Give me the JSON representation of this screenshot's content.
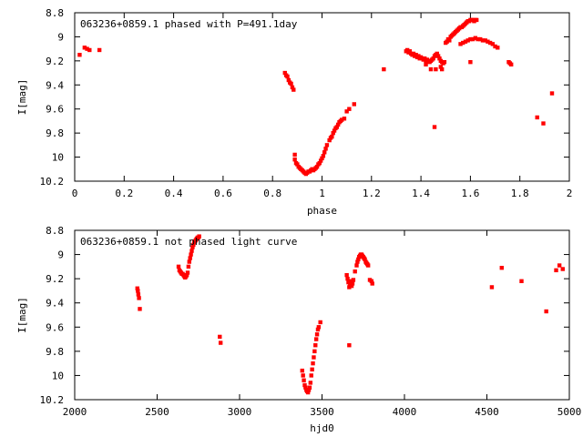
{
  "chart_data": [
    {
      "type": "scatter",
      "title": "063236+0859.1 phased with P=491.1day",
      "xlabel": "phase",
      "ylabel": "I[mag]",
      "xlim": [
        0,
        2
      ],
      "ylim": [
        10.2,
        8.8
      ],
      "y_inverted": true,
      "grid": false,
      "marker_color": "#ff0000",
      "x_ticks": [
        0,
        0.2,
        0.4,
        0.6,
        0.8,
        1,
        1.2,
        1.4,
        1.6,
        1.8,
        2
      ],
      "x_tick_labels": [
        "0",
        "0.2",
        "0.4",
        "0.6",
        "0.8",
        "1",
        "1.2",
        "1.4",
        "1.6",
        "1.8",
        "2"
      ],
      "y_ticks": [
        8.8,
        9,
        9.2,
        9.4,
        9.6,
        9.8,
        10,
        10.2
      ],
      "y_tick_labels": [
        "8.8",
        "9",
        "9.2",
        "9.4",
        "9.6",
        "9.8",
        "10",
        "10.2"
      ],
      "series": [
        {
          "x": [
            0.02,
            0.04,
            0.05,
            0.06,
            0.1,
            0.85,
            0.855,
            0.86,
            0.865,
            0.87,
            0.875,
            0.88,
            0.885,
            0.89,
            0.89,
            0.895,
            0.9,
            0.905,
            0.91,
            0.915,
            0.92,
            0.925,
            0.93,
            0.935,
            0.94,
            0.945,
            0.95,
            0.955,
            0.96,
            0.965,
            0.97,
            0.975,
            0.98,
            0.985,
            0.99,
            0.995,
            1.0,
            1.005,
            1.01,
            1.015,
            1.02,
            1.03,
            1.035,
            1.04,
            1.045,
            1.05,
            1.055,
            1.06,
            1.065,
            1.07,
            1.075,
            1.08,
            1.09,
            1.1,
            1.11,
            1.13,
            1.25,
            1.34,
            1.345,
            1.35,
            1.355,
            1.36,
            1.365,
            1.37,
            1.375,
            1.38,
            1.385,
            1.39,
            1.395,
            1.4,
            1.405,
            1.41,
            1.415,
            1.42,
            1.425,
            1.43,
            1.435,
            1.44,
            1.445,
            1.45,
            1.455,
            1.46,
            1.465,
            1.47,
            1.475,
            1.48,
            1.485,
            1.49,
            1.495,
            1.5,
            1.505,
            1.51,
            1.515,
            1.52,
            1.525,
            1.53,
            1.535,
            1.54,
            1.545,
            1.55,
            1.555,
            1.56,
            1.565,
            1.57,
            1.575,
            1.58,
            1.585,
            1.59,
            1.595,
            1.6,
            1.605,
            1.61,
            1.615,
            1.62,
            1.625,
            1.56,
            1.57,
            1.58,
            1.59,
            1.6,
            1.61,
            1.62,
            1.63,
            1.64,
            1.65,
            1.66,
            1.67,
            1.68,
            1.69,
            1.7,
            1.71,
            1.6,
            1.42,
            1.44,
            1.46,
            1.48,
            1.455,
            1.485,
            1.755,
            1.76,
            1.765,
            1.87,
            1.895,
            1.93
          ],
          "y": [
            9.15,
            9.09,
            9.1,
            9.11,
            9.11,
            9.3,
            9.32,
            9.33,
            9.36,
            9.38,
            9.39,
            9.42,
            9.44,
            9.98,
            10.02,
            10.05,
            10.06,
            10.08,
            10.09,
            10.1,
            10.11,
            10.12,
            10.13,
            10.14,
            10.13,
            10.12,
            10.12,
            10.11,
            10.1,
            10.11,
            10.1,
            10.09,
            10.08,
            10.06,
            10.05,
            10.03,
            10.01,
            9.99,
            9.96,
            9.93,
            9.9,
            9.86,
            9.84,
            9.83,
            9.8,
            9.78,
            9.76,
            9.75,
            9.73,
            9.71,
            9.7,
            9.69,
            9.68,
            9.62,
            9.6,
            9.56,
            9.27,
            9.12,
            9.11,
            9.13,
            9.12,
            9.14,
            9.15,
            9.14,
            9.16,
            9.15,
            9.17,
            9.16,
            9.18,
            9.17,
            9.18,
            9.19,
            9.18,
            9.2,
            9.19,
            9.2,
            9.21,
            9.2,
            9.19,
            9.18,
            9.16,
            9.15,
            9.14,
            9.16,
            9.18,
            9.2,
            9.21,
            9.22,
            9.21,
            9.05,
            9.04,
            9.02,
            9.03,
            9.0,
            8.99,
            8.98,
            8.97,
            8.96,
            8.95,
            8.94,
            8.93,
            8.92,
            8.92,
            8.91,
            8.9,
            8.89,
            8.88,
            8.87,
            8.87,
            8.86,
            8.86,
            8.86,
            8.87,
            8.86,
            8.86,
            9.06,
            9.05,
            9.04,
            9.03,
            9.02,
            9.02,
            9.01,
            9.02,
            9.02,
            9.03,
            9.03,
            9.04,
            9.05,
            9.06,
            9.08,
            9.09,
            9.21,
            9.23,
            9.27,
            9.27,
            9.25,
            9.75,
            9.27,
            9.21,
            9.22,
            9.23,
            9.67,
            9.72,
            9.47
          ]
        }
      ]
    },
    {
      "type": "scatter",
      "title": "063236+0859.1 not phased light curve",
      "xlabel": "hjd0",
      "ylabel": "I[mag]",
      "xlim": [
        2000,
        5000
      ],
      "ylim": [
        10.2,
        8.8
      ],
      "y_inverted": true,
      "grid": false,
      "marker_color": "#ff0000",
      "x_ticks": [
        2000,
        2500,
        3000,
        3500,
        4000,
        4500,
        5000
      ],
      "x_tick_labels": [
        "2000",
        "2500",
        "3000",
        "3500",
        "4000",
        "4500",
        "5000"
      ],
      "y_ticks": [
        8.8,
        9,
        9.2,
        9.4,
        9.6,
        9.8,
        10,
        10.2
      ],
      "y_tick_labels": [
        "8.8",
        "9",
        "9.2",
        "9.4",
        "9.6",
        "9.8",
        "10",
        "10.2"
      ],
      "series": [
        {
          "x": [
            2380,
            2383,
            2386,
            2390,
            2395,
            2630,
            2635,
            2640,
            2645,
            2650,
            2655,
            2660,
            2665,
            2670,
            2675,
            2680,
            2685,
            2690,
            2695,
            2700,
            2705,
            2710,
            2715,
            2720,
            2725,
            2730,
            2735,
            2740,
            2745,
            2750,
            2755,
            2880,
            2885,
            3380,
            3385,
            3390,
            3395,
            3400,
            3405,
            3410,
            3415,
            3420,
            3425,
            3430,
            3435,
            3440,
            3445,
            3450,
            3455,
            3460,
            3465,
            3470,
            3475,
            3480,
            3490,
            3650,
            3655,
            3660,
            3665,
            3670,
            3675,
            3680,
            3685,
            3690,
            3700,
            3710,
            3715,
            3720,
            3725,
            3730,
            3735,
            3740,
            3745,
            3750,
            3755,
            3760,
            3765,
            3770,
            3775,
            3780,
            3790,
            3800,
            3805,
            4530,
            4590,
            4710,
            4860,
            4920,
            4940,
            4960,
            3665
          ],
          "y": [
            9.28,
            9.3,
            9.33,
            9.36,
            9.45,
            9.1,
            9.13,
            9.14,
            9.15,
            9.16,
            9.16,
            9.17,
            9.18,
            9.19,
            9.18,
            9.17,
            9.15,
            9.1,
            9.06,
            9.03,
            9.0,
            8.97,
            8.94,
            8.92,
            8.9,
            8.89,
            8.88,
            8.87,
            8.86,
            8.86,
            8.85,
            9.68,
            9.73,
            9.96,
            10.0,
            10.04,
            10.08,
            10.1,
            10.12,
            10.13,
            10.14,
            10.12,
            10.1,
            10.06,
            10.0,
            9.95,
            9.9,
            9.85,
            9.8,
            9.75,
            9.7,
            9.66,
            9.62,
            9.6,
            9.56,
            9.17,
            9.2,
            9.23,
            9.27,
            9.25,
            9.22,
            9.26,
            9.24,
            9.21,
            9.14,
            9.09,
            9.06,
            9.04,
            9.02,
            9.01,
            9.0,
            9.0,
            9.01,
            9.02,
            9.03,
            9.04,
            9.06,
            9.07,
            9.08,
            9.09,
            9.21,
            9.22,
            9.24,
            9.27,
            9.11,
            9.22,
            9.47,
            9.13,
            9.09,
            9.12,
            9.75
          ]
        }
      ]
    }
  ]
}
